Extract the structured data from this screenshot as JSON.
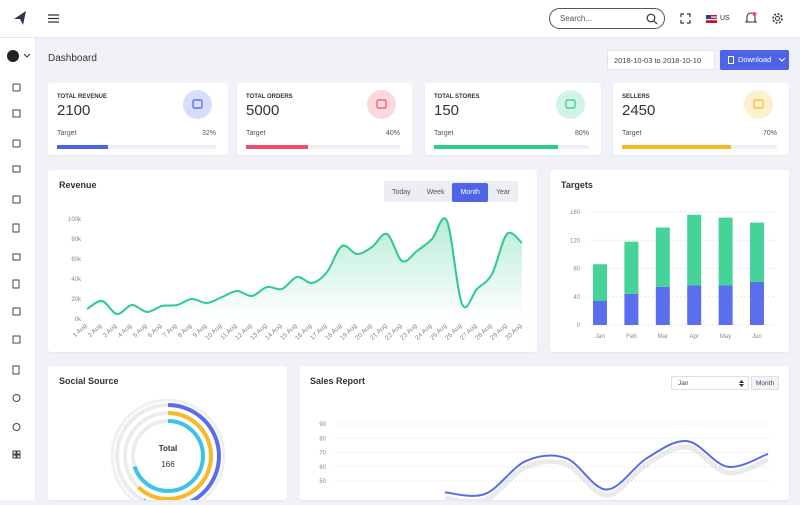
{
  "header": {
    "search_placeholder": "Search...",
    "locale": "US"
  },
  "page_title": "Dashboard",
  "date_range": "2018-10-03 to 2018-10-10",
  "download_button": "Download",
  "stat_cards": [
    {
      "title": "TOTAL REVENUE",
      "value": 2100,
      "target_label": "Target",
      "target": {
        "value": 32,
        "label": "32%"
      },
      "color": "#4a63e7"
    },
    {
      "title": "TOTAL ORDERS",
      "value": 5000,
      "target_label": "Target",
      "target": {
        "value": 40,
        "label": "40%"
      },
      "color": "#ef4d6b"
    },
    {
      "title": "TOTAL STORES",
      "value": 150,
      "target_label": "Target",
      "target": {
        "value": 80,
        "label": "80%"
      },
      "color": "#2fcb8c"
    },
    {
      "title": "SELLERS",
      "value": 2450,
      "target_label": "Target",
      "target": {
        "value": 70,
        "label": "70%"
      },
      "color": "#f7b924"
    }
  ],
  "chart_data": [
    {
      "type": "line",
      "title": "Revenue",
      "range_buttons": [
        "Today",
        "Week",
        "Month",
        "Year"
      ],
      "active_button": 2,
      "categories": [
        "1 Aug",
        "2 Aug",
        "3 Aug",
        "4 Aug",
        "5 Aug",
        "6 Aug",
        "7 Aug",
        "8 Aug",
        "9 Aug",
        "10 Aug",
        "11 Aug",
        "12 Aug",
        "13 Aug",
        "14 Aug",
        "15 Aug",
        "16 Aug",
        "17 Aug",
        "18 Aug",
        "19 Aug",
        "20 Aug",
        "21 Aug",
        "22 Aug",
        "23 Aug",
        "24 Aug",
        "25 Aug",
        "26 Aug",
        "27 Aug",
        "28 Aug",
        "29 Aug",
        "30 Aug"
      ],
      "values": [
        10000,
        18000,
        5000,
        14000,
        7000,
        13000,
        14000,
        20000,
        16000,
        22000,
        28000,
        23000,
        32000,
        30000,
        42000,
        36000,
        47000,
        73000,
        65000,
        72000,
        85000,
        58000,
        68000,
        80000,
        98000,
        15000,
        30000,
        45000,
        85000,
        76000
      ],
      "color": "#2fcb8c",
      "area": true,
      "grid": false,
      "ylim": [
        0,
        100000
      ],
      "yticks": [
        {
          "value": 0,
          "label": "0k"
        },
        {
          "value": 20000,
          "label": "20k"
        },
        {
          "value": 40000,
          "label": "40k"
        },
        {
          "value": 60000,
          "label": "60k"
        },
        {
          "value": 80000,
          "label": "80k"
        },
        {
          "value": 100000,
          "label": "100k"
        }
      ]
    },
    {
      "type": "stacked_bar",
      "title": "Targets",
      "categories": [
        "Jan",
        "Feb",
        "Mar",
        "Apr",
        "May",
        "Jun"
      ],
      "series": [
        {
          "color": "#5a6ff0",
          "values": [
            34,
            44,
            54,
            56,
            56,
            61
          ]
        },
        {
          "color": "#46d39a",
          "values": [
            52,
            74,
            84,
            100,
            96,
            84
          ]
        }
      ],
      "ylim": [
        0,
        160
      ],
      "yticks": [
        0,
        40,
        80,
        120,
        160
      ],
      "grid": true
    },
    {
      "type": "radial",
      "title": "Social Source",
      "center_label": "Total",
      "total": 166,
      "values": [
        58,
        62,
        70
      ],
      "colors": [
        "#5a6ff0",
        "#f7b924",
        "#3bc4e6"
      ]
    },
    {
      "type": "line",
      "title": "Sales Report",
      "select": "Jan",
      "button": "Month",
      "categories": [
        null,
        null,
        null,
        null,
        null,
        null,
        null,
        null,
        null
      ],
      "values": [
        42,
        41,
        64,
        66,
        44,
        66,
        78,
        60,
        69
      ],
      "color": "#5b6be8",
      "area": false,
      "grid": true,
      "ylim": [
        40,
        92
      ],
      "yticks": [
        50,
        60,
        70,
        80,
        90
      ]
    }
  ]
}
